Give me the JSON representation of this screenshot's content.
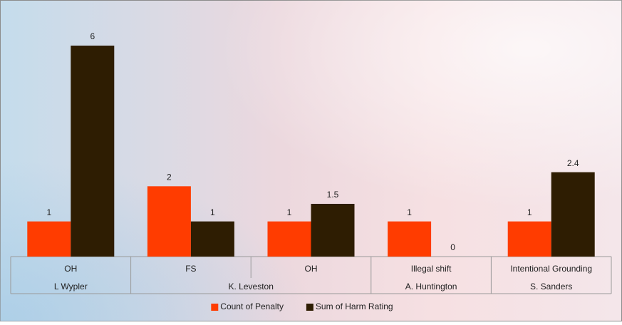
{
  "chart_data": {
    "type": "bar",
    "groups": [
      {
        "name": "L Wypler",
        "categories": [
          "OH"
        ]
      },
      {
        "name": "K. Leveston",
        "categories": [
          "FS",
          "OH"
        ]
      },
      {
        "name": "A. Huntington",
        "categories": [
          "Illegal shift"
        ]
      },
      {
        "name": "S. Sanders",
        "categories": [
          "Intentional Grounding"
        ]
      }
    ],
    "series": [
      {
        "name": "Count of Penalty",
        "color": "#ff3c00",
        "values": [
          1,
          2,
          1,
          1,
          1
        ]
      },
      {
        "name": "Sum of Harm Rating",
        "color": "#2e1d02",
        "values": [
          6,
          1,
          1.5,
          0,
          2.4
        ]
      }
    ],
    "legend": "bottom"
  }
}
